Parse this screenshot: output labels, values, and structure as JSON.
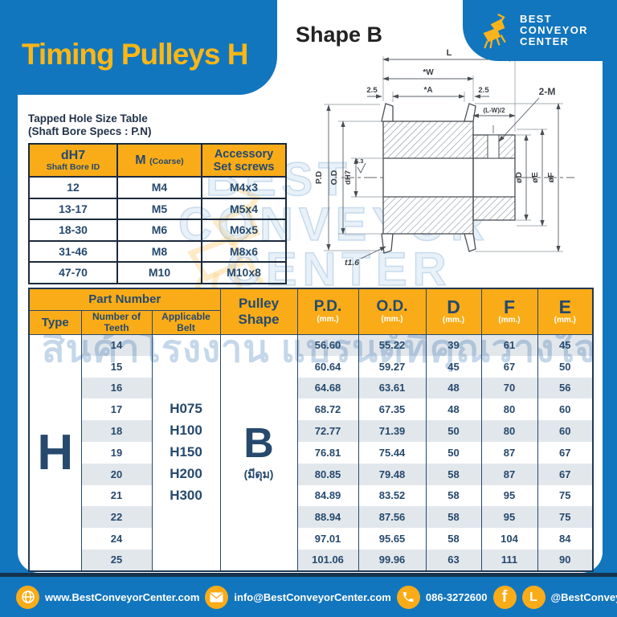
{
  "page": {
    "title": "Timing Pulleys H",
    "logo": {
      "line1": "BEST",
      "line2": "CONVEYOR",
      "line3": "CENTER"
    }
  },
  "shape_section": {
    "heading": "Shape B"
  },
  "diagram": {
    "l": "L",
    "w": "*W",
    "a": "*A",
    "off_l": "2.5",
    "off_r": "2.5",
    "lw": "(L-W)/2",
    "tap": "2-M",
    "pd": "P.D",
    "od": "O.D",
    "bore": "dH7",
    "finish": "6.3",
    "dd": "øD",
    "de": "øE",
    "df": "øF",
    "t": "t1.6"
  },
  "watermark": {
    "line1": "BEST",
    "line2": "CONVEYOR",
    "line3": "CENTER",
    "thai": "สินค้าโรงงาน แบรนด์ที่คุณวางใจ"
  },
  "tapped_table": {
    "title_line1": "Tapped Hole Size Table",
    "title_line2": "(Shaft Bore Specs : P.N)",
    "headers": {
      "col1_main": "dH7",
      "col1_sub": "Shaft Bore ID",
      "col2_main": "M",
      "col2_sub": "(Coarse)",
      "col3_line1": "Accessory",
      "col3_line2": "Set screws"
    },
    "rows": [
      [
        "12",
        "M4",
        "M4x3"
      ],
      [
        "13-17",
        "M5",
        "M5x4"
      ],
      [
        "18-30",
        "M6",
        "M6x5"
      ],
      [
        "31-46",
        "M8",
        "M8x6"
      ],
      [
        "47-70",
        "M10",
        "M10x8"
      ]
    ]
  },
  "main_table": {
    "headers": {
      "part_number": "Part Number",
      "type": "Type",
      "teeth": "Number of Teeth",
      "belt": "Applicable Belt",
      "pulley_shape": "Pulley Shape",
      "pd": "P.D.",
      "od": "O.D.",
      "d": "D",
      "f": "F",
      "e": "E",
      "unit": "(mm.)"
    },
    "type": "H",
    "belts": [
      "H075",
      "H100",
      "H150",
      "H200",
      "H300"
    ],
    "shape": {
      "letter": "B",
      "note": "(มีดุม)"
    },
    "rows": [
      {
        "teeth": "14",
        "pd": "56.60",
        "od": "55.22",
        "d": "39",
        "f": "61",
        "e": "45"
      },
      {
        "teeth": "15",
        "pd": "60.64",
        "od": "59.27",
        "d": "45",
        "f": "67",
        "e": "50"
      },
      {
        "teeth": "16",
        "pd": "64.68",
        "od": "63.61",
        "d": "48",
        "f": "70",
        "e": "56"
      },
      {
        "teeth": "17",
        "pd": "68.72",
        "od": "67.35",
        "d": "48",
        "f": "80",
        "e": "60"
      },
      {
        "teeth": "18",
        "pd": "72.77",
        "od": "71.39",
        "d": "50",
        "f": "80",
        "e": "60"
      },
      {
        "teeth": "19",
        "pd": "76.81",
        "od": "75.44",
        "d": "50",
        "f": "87",
        "e": "67"
      },
      {
        "teeth": "20",
        "pd": "80.85",
        "od": "79.48",
        "d": "58",
        "f": "87",
        "e": "67"
      },
      {
        "teeth": "21",
        "pd": "84.89",
        "od": "83.52",
        "d": "58",
        "f": "95",
        "e": "75"
      },
      {
        "teeth": "22",
        "pd": "88.94",
        "od": "87.56",
        "d": "58",
        "f": "95",
        "e": "75"
      },
      {
        "teeth": "24",
        "pd": "97.01",
        "od": "95.65",
        "d": "58",
        "f": "104",
        "e": "84"
      },
      {
        "teeth": "25",
        "pd": "101.06",
        "od": "99.96",
        "d": "63",
        "f": "111",
        "e": "90"
      }
    ]
  },
  "footer": {
    "website": "www.BestConveyorCenter.com",
    "email": "info@BestConveyorCenter.com",
    "phone": "086-3272600",
    "facebook_glyph": "f",
    "line_glyph": "L",
    "social": "@BestConveyorCenter"
  }
}
